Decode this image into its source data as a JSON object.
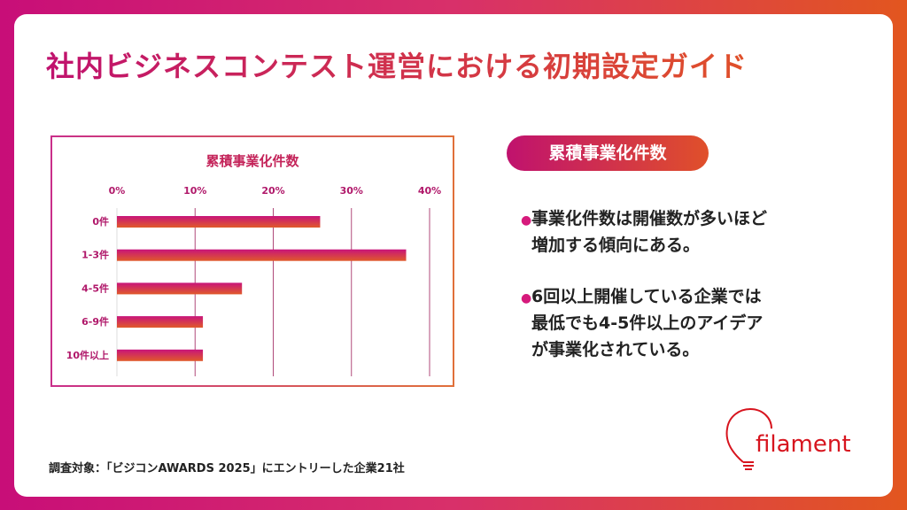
{
  "title": "社内ビジネスコンテスト運営における初期設定ガイド",
  "badge": "累積事業化件数",
  "bullets": [
    "事業化件数は開催数が多いほど\n増加する傾向にある。",
    "6回以上開催している企業では\n最低でも4-5件以上のアイデア\nが事業化されている。"
  ],
  "footer": "調査対象：「ビジコンAWARDS 2025」にエントリーした企業21社",
  "logo": "filament",
  "colors": {
    "magenta": "#c0126e",
    "orange": "#e0502a"
  },
  "chart_data": {
    "type": "bar",
    "orientation": "horizontal",
    "title": "累積事業化件数",
    "categories": [
      "0件",
      "1-3件",
      "4-5件",
      "6-9件",
      "10件以上"
    ],
    "values": [
      26,
      37,
      16,
      11,
      11
    ],
    "unit": "%",
    "xlim": [
      0,
      40
    ],
    "ticks": [
      "0%",
      "10%",
      "20%",
      "30%",
      "40%"
    ],
    "grid": true,
    "axis_position": "top"
  }
}
